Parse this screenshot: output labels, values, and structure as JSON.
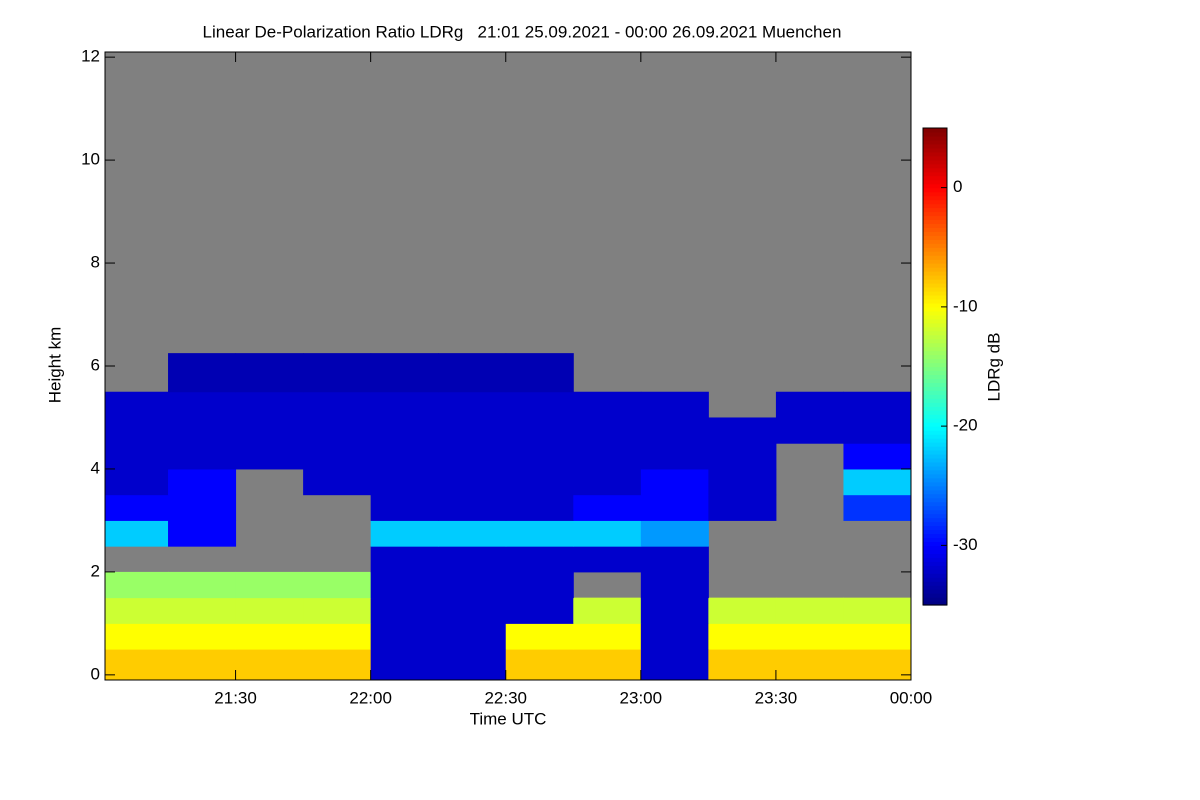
{
  "chart_data": {
    "type": "heatmap",
    "title": "Linear De-Polarization Ratio LDRg   21:01 25.09.2021 - 00:00 26.09.2021 Muenchen",
    "x_label": "Time UTC",
    "y_label": "Height km",
    "colorbar_label": "LDRg dB",
    "colormap": "jet",
    "nan_color": "#808080",
    "xlim": [
      21.0167,
      24.0
    ],
    "xticks": [
      {
        "value": 21.5,
        "label": "21:30"
      },
      {
        "value": 22.0,
        "label": "22:00"
      },
      {
        "value": 22.5,
        "label": "22:30"
      },
      {
        "value": 23.0,
        "label": "23:00"
      },
      {
        "value": 23.5,
        "label": "23:30"
      },
      {
        "value": 24.0,
        "label": "00:00"
      }
    ],
    "ylim": [
      -0.1,
      12.1
    ],
    "yticks": [
      0,
      2,
      4,
      6,
      8,
      10,
      12
    ],
    "clim": [
      -35,
      5
    ],
    "cticks": [
      -30,
      -20,
      -10,
      0
    ],
    "x": [
      21.125,
      21.375,
      21.625,
      21.875,
      22.125,
      22.375,
      22.625,
      22.875,
      23.125,
      23.375,
      23.625,
      23.875
    ],
    "y": [
      0.25,
      0.75,
      1.25,
      1.75,
      2.25,
      2.75,
      3.25,
      3.75,
      4.25,
      4.75,
      5.25,
      5.75
    ],
    "z": [
      [
        -8,
        -8,
        -8,
        -8,
        -32,
        -32,
        -8,
        -8,
        -32,
        -8,
        -8,
        -8
      ],
      [
        -10,
        -10,
        -10,
        -10,
        -32,
        -32,
        -10,
        -10,
        -32,
        -10,
        -10,
        -10
      ],
      [
        -12,
        -12,
        -12,
        -12,
        -32,
        -32,
        -32,
        -12,
        -32,
        -12,
        -12,
        -12
      ],
      [
        -14,
        -14,
        -14,
        -14,
        -32,
        -32,
        -32,
        null,
        -32,
        null,
        null,
        null
      ],
      [
        null,
        null,
        null,
        null,
        -32,
        -32,
        -32,
        -32,
        -32,
        null,
        null,
        null
      ],
      [
        -22,
        -30,
        null,
        null,
        -22,
        -22,
        -22,
        -22,
        -24,
        null,
        null,
        null
      ],
      [
        -30,
        -30,
        null,
        null,
        -32,
        -32,
        -32,
        -30,
        -30,
        -32,
        null,
        -28
      ],
      [
        -32,
        -30,
        null,
        -32,
        -32,
        -32,
        -32,
        -32,
        -30,
        -32,
        null,
        -22
      ],
      [
        -32,
        -32,
        -32,
        -32,
        -32,
        -32,
        -32,
        -32,
        -32,
        -32,
        null,
        -30
      ],
      [
        -32,
        -32,
        -32,
        -32,
        -32,
        -32,
        -32,
        -32,
        -32,
        -32,
        -32,
        -32
      ],
      [
        -32,
        -32,
        -32,
        -32,
        -32,
        -32,
        -32,
        -32,
        -32,
        null,
        -32,
        -32
      ],
      [
        null,
        -33,
        -33,
        -33,
        -33,
        -33,
        -33,
        null,
        null,
        null,
        null,
        null
      ]
    ]
  }
}
